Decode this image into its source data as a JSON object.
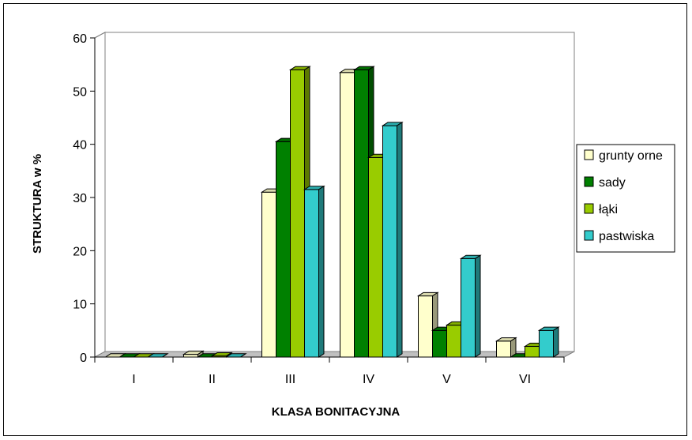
{
  "chart_data": {
    "type": "bar",
    "title": "",
    "xlabel": "KLASA BONITACYJNA",
    "ylabel": "STRUKTURA w %",
    "ylim": [
      0,
      60
    ],
    "yticks": [
      0,
      10,
      20,
      30,
      40,
      50,
      60
    ],
    "categories": [
      "I",
      "II",
      "III",
      "IV",
      "V",
      "VI"
    ],
    "grid": true,
    "legend_position": "right",
    "series": [
      {
        "name": "grunty orne",
        "color": "#ffffcc",
        "values": [
          0,
          0.5,
          31,
          53.5,
          11.5,
          3
        ]
      },
      {
        "name": "sady",
        "color": "#008000",
        "values": [
          0,
          0,
          40.5,
          54,
          5,
          0
        ]
      },
      {
        "name": "łąki",
        "color": "#99cc00",
        "values": [
          0,
          0.2,
          54,
          37.5,
          6,
          2
        ]
      },
      {
        "name": "pastwiska",
        "color": "#33cccc",
        "values": [
          0,
          0,
          31.5,
          43.5,
          18.5,
          5
        ]
      }
    ]
  }
}
